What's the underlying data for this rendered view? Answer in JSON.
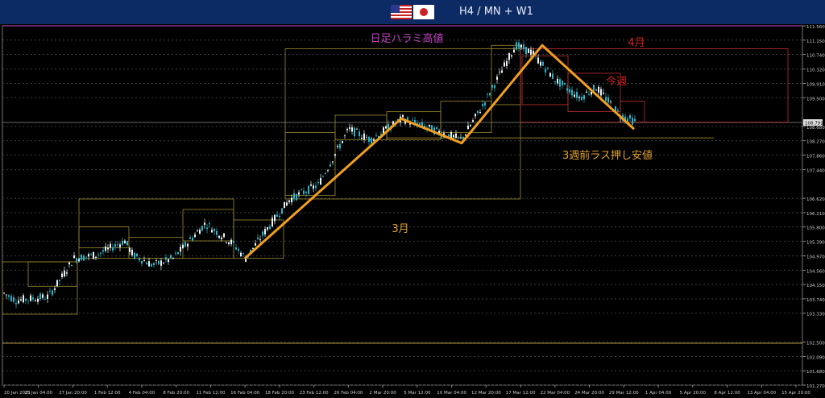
{
  "header": {
    "title": "H4 / MN + W1",
    "flags": [
      "us-flag",
      "japan-flag"
    ]
  },
  "chart_data": {
    "type": "candlestick",
    "title": "",
    "price_range": [
      101.27,
      111.56
    ],
    "y_ticks": [
      "111.560",
      "111.150",
      "110.740",
      "110.320",
      "109.910",
      "109.500",
      "108.680",
      "108.270",
      "107.860",
      "107.440",
      "106.620",
      "106.210",
      "105.800",
      "105.390",
      "104.970",
      "104.560",
      "104.150",
      "103.740",
      "103.330",
      "102.500",
      "102.090",
      "101.680",
      "101.270"
    ],
    "y_tick_values": [
      111.56,
      111.15,
      110.74,
      110.32,
      109.91,
      109.5,
      108.68,
      108.27,
      107.86,
      107.44,
      106.62,
      106.21,
      105.8,
      105.39,
      104.97,
      104.56,
      104.15,
      103.74,
      103.33,
      102.5,
      102.09,
      101.68,
      101.27
    ],
    "current_price_label": "108.791",
    "current_price": 108.791,
    "x_ticks": [
      "20 Jan 2021",
      "25 Jan 04:00",
      "27 Jan 20:00",
      "1 Feb 12:00",
      "4 Feb 04:00",
      "8 Feb 20:00",
      "11 Feb 12:00",
      "16 Feb 04:00",
      "18 Feb 20:00",
      "23 Feb 12:00",
      "26 Feb 04:00",
      "2 Mar 20:00",
      "5 Mar 12:00",
      "10 Mar 04:00",
      "12 Mar 20:00",
      "17 Mar 12:00",
      "22 Mar 04:00",
      "24 Mar 20:00",
      "29 Mar 12:00",
      "1 Apr 04:00",
      "5 Apr 20:00",
      "8 Apr 12:00",
      "13 Apr 04:00",
      "15 Apr 20:00"
    ],
    "annotations": [
      {
        "text": "日足ハラミ高値",
        "color": "#c040c0"
      },
      {
        "text": "4月",
        "color": "#d02020"
      },
      {
        "text": "今週",
        "color": "#d02020"
      },
      {
        "text": "3週前ラス押し安値",
        "color": "#e0a030"
      },
      {
        "text": "3月",
        "color": "#e0a030"
      }
    ],
    "zigzag": [
      104.9,
      108.9,
      108.2,
      111.0,
      108.6
    ],
    "colors": {
      "bull": "#e8f4f8",
      "bear": "#2ab5c9",
      "zigzag": "#f0a020",
      "month_box": "#9a8a30",
      "week_box": "#c03030",
      "grid": "#3c3c3c"
    }
  }
}
